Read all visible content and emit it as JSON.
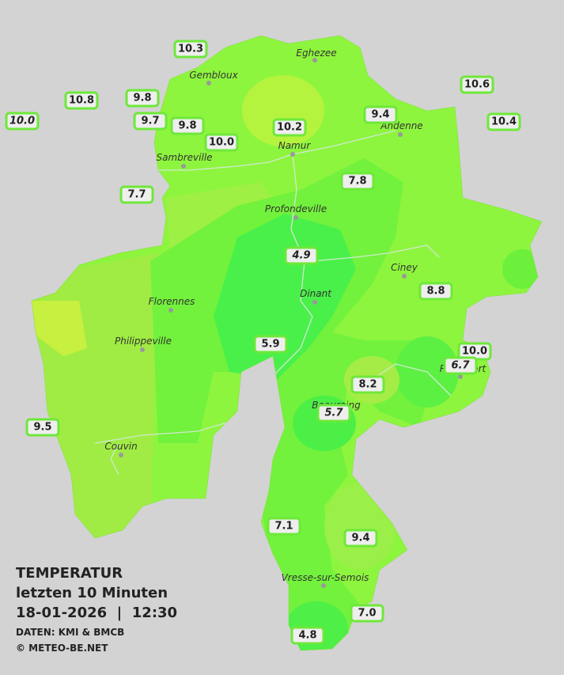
{
  "legend": {
    "title": "TEMPERATUR",
    "period": "letzten 10 Minuten",
    "datetime": "18-01-2026  |  12:30",
    "source": "DATEN: KMI & BMCB",
    "credit": "© METEO-BE.NET"
  },
  "cities": [
    "Eghezee",
    "Gembloux",
    "Andenne",
    "Namur",
    "Sambreville",
    "Profondeville",
    "Ciney",
    "Florennes",
    "Dinant",
    "Philippeville",
    "Rochefort",
    "Beauraing",
    "Couvin",
    "Vresse-sur-Semois"
  ],
  "stations": [
    "10.3",
    "10.8",
    "9.8",
    "10.0",
    "9.7",
    "9.8",
    "10.0",
    "10.2",
    "9.4",
    "10.6",
    "10.4",
    "7.7",
    "7.8",
    "4.9",
    "8.8",
    "5.9",
    "10.0",
    "6.7",
    "8.2",
    "5.7",
    "9.5",
    "7.1",
    "9.4",
    "7.0",
    "4.8"
  ]
}
